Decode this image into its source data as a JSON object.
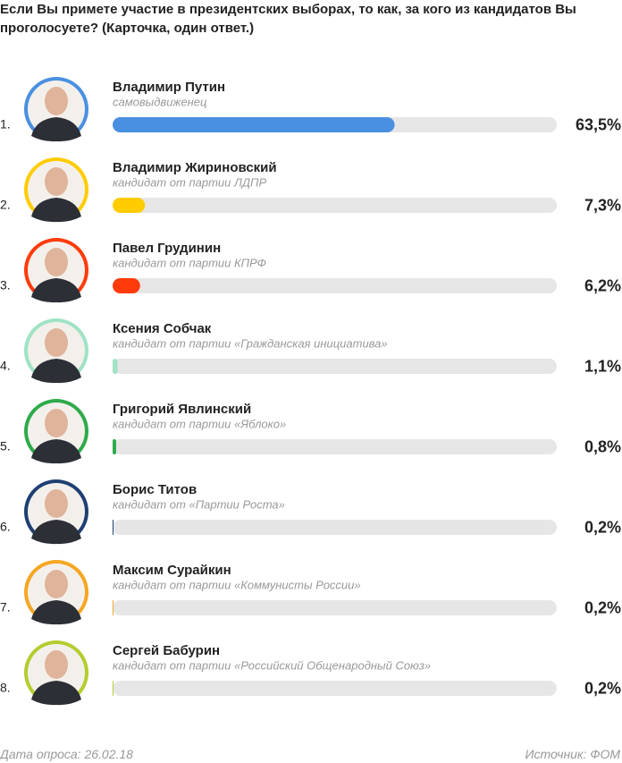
{
  "chart_data": {
    "type": "bar",
    "title": "Если Вы примете участие в президентских выборах, то как, за кого из кандидатов Вы проголосуете? (Карточка, один ответ.)",
    "ranks": [
      "1.",
      "2.",
      "3.",
      "4.",
      "5.",
      "6.",
      "7.",
      "8."
    ],
    "categories": [
      "Владимир Путин",
      "Владимир Жириновский",
      "Павел Грудинин",
      "Ксения Собчак",
      "Григорий Явлинский",
      "Борис Титов",
      "Максим Сурайкин",
      "Сергей Бабурин"
    ],
    "descriptions": [
      "самовыдвиженец",
      "кандидат от партии ЛДПР",
      "кандидат от партии КПРФ",
      "кандидат от партии «Гражданская инициатива»",
      "кандидат от партии «Яблоко»",
      "кандидат от «Партии Роста»",
      "кандидат от партии «Коммунисты России»",
      "кандидат от партии «Российский Общенародный Союз»"
    ],
    "values": [
      63.5,
      7.3,
      6.2,
      1.1,
      0.8,
      0.2,
      0.2,
      0.2
    ],
    "value_labels": [
      "63,5%",
      "7,3%",
      "6,2%",
      "1,1%",
      "0,8%",
      "0,2%",
      "0,2%",
      "0,2%"
    ],
    "colors": [
      "#4a90e2",
      "#ffcc00",
      "#ff3b0a",
      "#9fe3c4",
      "#2eaa4a",
      "#1f3f73",
      "#f5a623",
      "#b5cc2e"
    ],
    "xlim": [
      0,
      100
    ],
    "footer_left": "Дата опроса: 26.02.18",
    "footer_right": "Источник: ФОМ"
  }
}
